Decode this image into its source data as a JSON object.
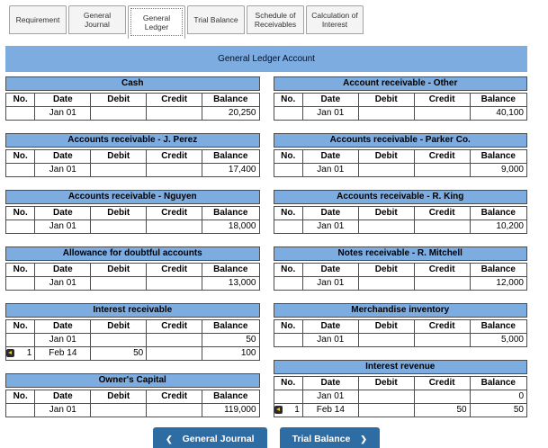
{
  "tabs": [
    {
      "label": "Requirement",
      "active": false
    },
    {
      "label": "General Journal",
      "active": false
    },
    {
      "label": "General Ledger",
      "active": true
    },
    {
      "label": "Trial Balance",
      "active": false
    },
    {
      "label": "Schedule of Receivables",
      "active": false
    },
    {
      "label": "Calculation of Interest",
      "active": false
    }
  ],
  "panel": {
    "title": "General Ledger Account"
  },
  "columns": [
    "No.",
    "Date",
    "Debit",
    "Credit",
    "Balance"
  ],
  "ledgers_left": [
    {
      "title": "Cash",
      "rows": [
        {
          "no": "",
          "date": "Jan 01",
          "debit": "",
          "credit": "",
          "balance": "20,250",
          "link": false
        }
      ]
    },
    {
      "title": "Accounts receivable - J. Perez",
      "rows": [
        {
          "no": "",
          "date": "Jan 01",
          "debit": "",
          "credit": "",
          "balance": "17,400",
          "link": false
        }
      ]
    },
    {
      "title": "Accounts receivable - Nguyen",
      "rows": [
        {
          "no": "",
          "date": "Jan 01",
          "debit": "",
          "credit": "",
          "balance": "18,000",
          "link": false
        }
      ]
    },
    {
      "title": "Allowance for doubtful accounts",
      "rows": [
        {
          "no": "",
          "date": "Jan 01",
          "debit": "",
          "credit": "",
          "balance": "13,000",
          "link": false
        }
      ]
    },
    {
      "title": "Interest receivable",
      "rows": [
        {
          "no": "",
          "date": "Jan 01",
          "debit": "",
          "credit": "",
          "balance": "50",
          "link": false
        },
        {
          "no": "1",
          "date": "Feb 14",
          "debit": "50",
          "credit": "",
          "balance": "100",
          "link": true
        }
      ]
    },
    {
      "title": "Owner's Capital",
      "rows": [
        {
          "no": "",
          "date": "Jan 01",
          "debit": "",
          "credit": "",
          "balance": "119,000",
          "link": false
        }
      ]
    }
  ],
  "ledgers_right": [
    {
      "title": "Account receivable - Other",
      "rows": [
        {
          "no": "",
          "date": "Jan 01",
          "debit": "",
          "credit": "",
          "balance": "40,100",
          "link": false
        }
      ]
    },
    {
      "title": "Accounts receivable - Parker Co.",
      "rows": [
        {
          "no": "",
          "date": "Jan 01",
          "debit": "",
          "credit": "",
          "balance": "9,000",
          "link": false
        }
      ]
    },
    {
      "title": "Accounts receivable - R. King",
      "rows": [
        {
          "no": "",
          "date": "Jan 01",
          "debit": "",
          "credit": "",
          "balance": "10,200",
          "link": false
        }
      ]
    },
    {
      "title": "Notes receivable - R. Mitchell",
      "rows": [
        {
          "no": "",
          "date": "Jan 01",
          "debit": "",
          "credit": "",
          "balance": "12,000",
          "link": false
        }
      ]
    },
    {
      "title": "Merchandise inventory",
      "rows": [
        {
          "no": "",
          "date": "Jan 01",
          "debit": "",
          "credit": "",
          "balance": "5,000",
          "link": false
        }
      ]
    },
    {
      "title": "Interest revenue",
      "rows": [
        {
          "no": "",
          "date": "Jan 01",
          "debit": "",
          "credit": "",
          "balance": "0",
          "link": false
        },
        {
          "no": "1",
          "date": "Feb 14",
          "debit": "",
          "credit": "50",
          "balance": "50",
          "link": true
        }
      ]
    }
  ],
  "nav": {
    "prev_label": "General Journal",
    "prev_icon": "❮",
    "next_label": "Trial Balance",
    "next_icon": "❯"
  },
  "colors": {
    "bar_blue": "#7DACE1",
    "button_blue": "#2E6DA4"
  }
}
